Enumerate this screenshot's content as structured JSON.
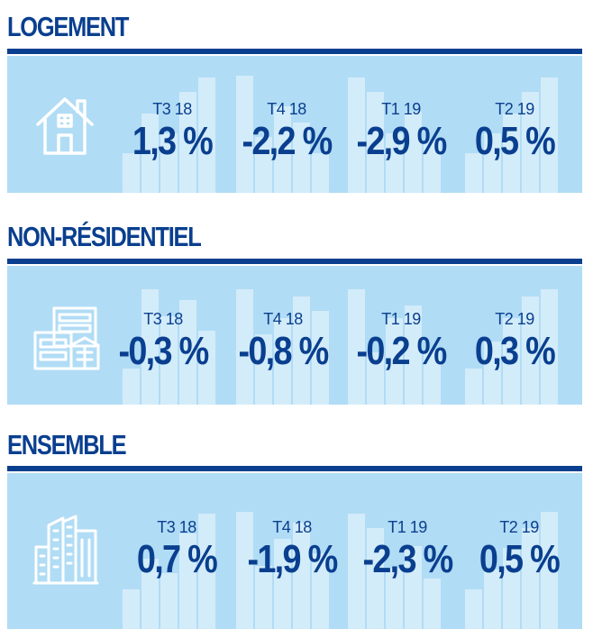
{
  "sections": [
    {
      "title": "LOGEMENT",
      "icon": "house-icon",
      "stats": [
        {
          "period": "T3 18",
          "value": "1,3 %"
        },
        {
          "period": "T4 18",
          "value": "-2,2 %"
        },
        {
          "period": "T1 19",
          "value": "-2,9 %"
        },
        {
          "period": "T2 19",
          "value": "0,5 %"
        }
      ]
    },
    {
      "title": "NON-RÉSIDENTIEL",
      "icon": "office-buildings-icon",
      "stats": [
        {
          "period": "T3 18",
          "value": "-0,3 %"
        },
        {
          "period": "T4 18",
          "value": "-0,8 %"
        },
        {
          "period": "T1 19",
          "value": "-0,2 %"
        },
        {
          "period": "T2 19",
          "value": "0,3 %"
        }
      ]
    },
    {
      "title": "ENSEMBLE",
      "icon": "city-skyline-icon",
      "stats": [
        {
          "period": "T3 18",
          "value": "0,7 %"
        },
        {
          "period": "T4 18",
          "value": "-1,9 %"
        },
        {
          "period": "T1 19",
          "value": "-2,3 %"
        },
        {
          "period": "T2 19",
          "value": "0,5 %"
        }
      ]
    }
  ],
  "colors": {
    "primary": "#0a3f8f",
    "panel": "#b1dcf5",
    "bars": "#d3ecfa"
  }
}
